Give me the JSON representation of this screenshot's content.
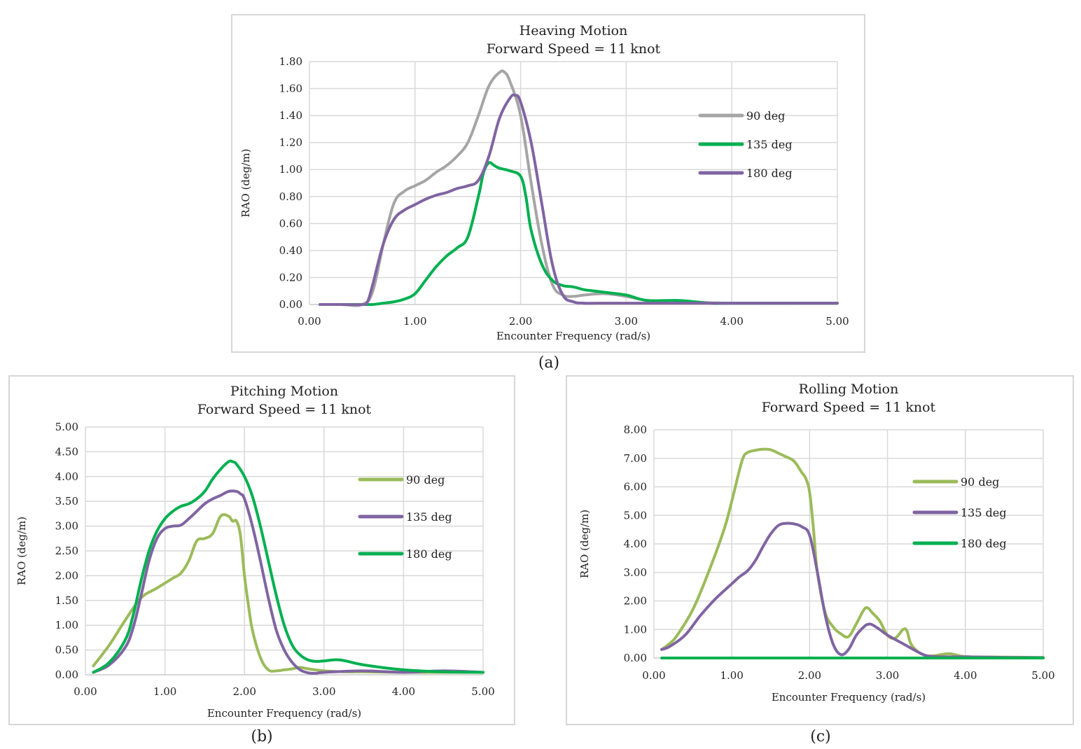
{
  "chart_data": [
    {
      "type": "line",
      "title": "Heaving Motion",
      "subtitle": "Forward Speed = 11 knot",
      "xlabel": "Encounter Frequency (rad/s)",
      "ylabel": "RAO (deg/m)",
      "xlim": [
        0,
        5
      ],
      "ylim": [
        0,
        1.8
      ],
      "xticks": [
        "0.00",
        "1.00",
        "2.00",
        "3.00",
        "4.00",
        "5.00"
      ],
      "yticks": [
        "0.00",
        "0.20",
        "0.40",
        "0.60",
        "0.80",
        "1.00",
        "1.20",
        "1.40",
        "1.60",
        "1.80"
      ],
      "grid": true,
      "legend_position": "right",
      "caption": "(a)",
      "series": [
        {
          "name": "90 deg",
          "color": "#a5a5a5",
          "x": [
            0.1,
            0.3,
            0.5,
            0.6,
            0.7,
            0.8,
            0.9,
            1.0,
            1.1,
            1.2,
            1.3,
            1.4,
            1.5,
            1.6,
            1.7,
            1.8,
            1.85,
            1.9,
            2.0,
            2.1,
            2.2,
            2.3,
            2.4,
            2.5,
            2.6,
            2.8,
            3.0,
            3.2,
            3.5,
            4.0,
            5.0
          ],
          "y": [
            0,
            0,
            0,
            0.1,
            0.45,
            0.75,
            0.84,
            0.88,
            0.92,
            0.98,
            1.03,
            1.1,
            1.2,
            1.4,
            1.62,
            1.72,
            1.72,
            1.65,
            1.4,
            0.9,
            0.45,
            0.15,
            0.07,
            0.06,
            0.07,
            0.08,
            0.06,
            0.03,
            0.02,
            0.01,
            0.01
          ]
        },
        {
          "name": "135 deg",
          "color": "#00b050",
          "x": [
            0.1,
            0.3,
            0.5,
            0.6,
            0.7,
            0.8,
            0.9,
            1.0,
            1.1,
            1.2,
            1.3,
            1.4,
            1.5,
            1.6,
            1.65,
            1.7,
            1.75,
            1.8,
            1.9,
            2.0,
            2.05,
            2.1,
            2.2,
            2.3,
            2.4,
            2.5,
            2.6,
            2.7,
            2.8,
            3.0,
            3.2,
            3.5,
            3.8,
            4.0,
            5.0
          ],
          "y": [
            0,
            0,
            0,
            0,
            0.01,
            0.02,
            0.04,
            0.08,
            0.18,
            0.28,
            0.36,
            0.42,
            0.5,
            0.8,
            0.98,
            1.05,
            1.03,
            1.01,
            0.99,
            0.95,
            0.8,
            0.55,
            0.3,
            0.18,
            0.14,
            0.13,
            0.11,
            0.1,
            0.09,
            0.07,
            0.03,
            0.03,
            0.01,
            0.01,
            0.01
          ]
        },
        {
          "name": "180 deg",
          "color": "#8064a2",
          "x": [
            0.1,
            0.3,
            0.5,
            0.55,
            0.6,
            0.7,
            0.8,
            0.9,
            1.0,
            1.1,
            1.2,
            1.3,
            1.4,
            1.5,
            1.6,
            1.7,
            1.8,
            1.9,
            1.95,
            2.0,
            2.1,
            2.2,
            2.3,
            2.4,
            2.5,
            2.6,
            2.8,
            3.0,
            3.5,
            4.0,
            5.0
          ],
          "y": [
            0,
            0,
            0,
            0.02,
            0.15,
            0.45,
            0.63,
            0.7,
            0.74,
            0.78,
            0.81,
            0.83,
            0.86,
            0.88,
            0.92,
            1.1,
            1.38,
            1.53,
            1.55,
            1.5,
            1.2,
            0.75,
            0.3,
            0.07,
            0.02,
            0.01,
            0.01,
            0.01,
            0.01,
            0.01,
            0.01
          ]
        }
      ]
    },
    {
      "type": "line",
      "title": "Pitching Motion",
      "subtitle": "Forward Speed = 11 knot",
      "xlabel": "Encounter Frequency (rad/s)",
      "ylabel": "RAO (deg/m)",
      "xlim": [
        0,
        5
      ],
      "ylim": [
        0,
        5
      ],
      "xticks": [
        "0.00",
        "1.00",
        "2.00",
        "3.00",
        "4.00",
        "5.00"
      ],
      "yticks": [
        "0.00",
        "0.50",
        "1.00",
        "1.50",
        "2.00",
        "2.50",
        "3.00",
        "3.50",
        "4.00",
        "4.50",
        "5.00"
      ],
      "grid": true,
      "legend_position": "right",
      "caption": "(b)",
      "series": [
        {
          "name": "90 deg",
          "color": "#9bbb59",
          "x": [
            0.1,
            0.3,
            0.5,
            0.7,
            0.9,
            1.1,
            1.2,
            1.3,
            1.4,
            1.5,
            1.6,
            1.7,
            1.8,
            1.85,
            1.9,
            1.95,
            2.0,
            2.05,
            2.1,
            2.2,
            2.3,
            2.4,
            2.5,
            2.6,
            2.7,
            2.8,
            3.0,
            3.3,
            3.5,
            4.0,
            4.5,
            5.0
          ],
          "y": [
            0.18,
            0.6,
            1.1,
            1.55,
            1.75,
            1.95,
            2.05,
            2.3,
            2.7,
            2.75,
            2.85,
            3.2,
            3.2,
            3.1,
            3.1,
            2.8,
            2.0,
            1.4,
            0.9,
            0.35,
            0.1,
            0.08,
            0.1,
            0.12,
            0.15,
            0.12,
            0.08,
            0.06,
            0.06,
            0.05,
            0.05,
            0.05
          ]
        },
        {
          "name": "135 deg",
          "color": "#8064a2",
          "x": [
            0.1,
            0.3,
            0.5,
            0.6,
            0.7,
            0.8,
            0.9,
            1.0,
            1.1,
            1.2,
            1.3,
            1.4,
            1.5,
            1.6,
            1.7,
            1.8,
            1.9,
            1.95,
            2.0,
            2.1,
            2.2,
            2.3,
            2.4,
            2.5,
            2.6,
            2.7,
            2.8,
            2.9,
            3.0,
            3.5,
            4.0,
            4.5,
            5.0
          ],
          "y": [
            0.05,
            0.2,
            0.55,
            0.95,
            1.6,
            2.3,
            2.75,
            2.95,
            3.0,
            3.02,
            3.15,
            3.3,
            3.45,
            3.55,
            3.62,
            3.7,
            3.7,
            3.65,
            3.55,
            3.0,
            2.3,
            1.55,
            0.9,
            0.5,
            0.25,
            0.1,
            0.04,
            0.03,
            0.05,
            0.08,
            0.05,
            0.08,
            0.05
          ]
        },
        {
          "name": "180 deg",
          "color": "#00b050",
          "x": [
            0.1,
            0.3,
            0.5,
            0.6,
            0.7,
            0.8,
            0.9,
            1.0,
            1.1,
            1.2,
            1.3,
            1.4,
            1.5,
            1.6,
            1.7,
            1.8,
            1.85,
            1.9,
            2.0,
            2.1,
            2.2,
            2.3,
            2.4,
            2.5,
            2.6,
            2.7,
            2.8,
            2.9,
            3.0,
            3.2,
            3.5,
            4.0,
            4.5,
            5.0
          ],
          "y": [
            0.05,
            0.25,
            0.7,
            1.2,
            1.9,
            2.5,
            2.9,
            3.15,
            3.3,
            3.4,
            3.45,
            3.55,
            3.7,
            3.95,
            4.15,
            4.3,
            4.3,
            4.25,
            4.0,
            3.6,
            3.0,
            2.3,
            1.6,
            1.0,
            0.6,
            0.4,
            0.3,
            0.27,
            0.28,
            0.3,
            0.2,
            0.1,
            0.06,
            0.05
          ]
        }
      ]
    },
    {
      "type": "line",
      "title": "Rolling Motion",
      "subtitle": "Forward Speed = 11 knot",
      "xlabel": "Encounter Frequency (rad/s)",
      "ylabel": "RAO (deg/m)",
      "xlim": [
        0,
        5
      ],
      "ylim": [
        0,
        8
      ],
      "xticks": [
        "0.00",
        "1.00",
        "2.00",
        "3.00",
        "4.00",
        "5.00"
      ],
      "yticks": [
        "0.00",
        "1.00",
        "2.00",
        "3.00",
        "4.00",
        "5.00",
        "6.00",
        "7.00",
        "8.00"
      ],
      "grid": true,
      "legend_position": "right",
      "caption": "(c)",
      "series": [
        {
          "name": "90 deg",
          "color": "#9bbb59",
          "x": [
            0.1,
            0.2,
            0.3,
            0.5,
            0.7,
            0.9,
            1.0,
            1.1,
            1.15,
            1.2,
            1.3,
            1.4,
            1.5,
            1.6,
            1.7,
            1.8,
            1.9,
            1.95,
            2.0,
            2.05,
            2.1,
            2.2,
            2.3,
            2.4,
            2.5,
            2.6,
            2.7,
            2.75,
            2.8,
            2.9,
            3.0,
            3.1,
            3.2,
            3.25,
            3.3,
            3.4,
            3.5,
            3.6,
            3.8,
            4.0,
            4.5,
            5.0
          ],
          "y": [
            0.3,
            0.5,
            0.8,
            1.7,
            3.0,
            4.5,
            5.5,
            6.6,
            7.05,
            7.2,
            7.28,
            7.32,
            7.3,
            7.18,
            7.05,
            6.9,
            6.5,
            6.3,
            5.8,
            4.5,
            3.0,
            1.6,
            1.1,
            0.85,
            0.75,
            1.2,
            1.7,
            1.75,
            1.6,
            1.3,
            0.8,
            0.7,
            1.0,
            0.95,
            0.5,
            0.2,
            0.08,
            0.08,
            0.15,
            0.05,
            0.03,
            0.02
          ]
        },
        {
          "name": "135 deg",
          "color": "#8064a2",
          "x": [
            0.1,
            0.2,
            0.4,
            0.6,
            0.8,
            1.0,
            1.1,
            1.2,
            1.3,
            1.4,
            1.5,
            1.6,
            1.7,
            1.8,
            1.9,
            2.0,
            2.1,
            2.2,
            2.3,
            2.4,
            2.5,
            2.6,
            2.7,
            2.75,
            2.8,
            2.9,
            3.0,
            3.2,
            3.4,
            3.5,
            3.6,
            3.8,
            4.0,
            4.5,
            5.0
          ],
          "y": [
            0.3,
            0.4,
            0.8,
            1.5,
            2.1,
            2.6,
            2.85,
            3.05,
            3.4,
            3.9,
            4.35,
            4.65,
            4.72,
            4.7,
            4.6,
            4.3,
            3.0,
            1.5,
            0.5,
            0.12,
            0.3,
            0.8,
            1.1,
            1.18,
            1.17,
            1.0,
            0.8,
            0.5,
            0.2,
            0.08,
            0.05,
            0.04,
            0.04,
            0.02,
            0.01
          ]
        },
        {
          "name": "180 deg",
          "color": "#00b050",
          "x": [
            0.1,
            5.0
          ],
          "y": [
            0,
            0
          ]
        }
      ]
    }
  ]
}
